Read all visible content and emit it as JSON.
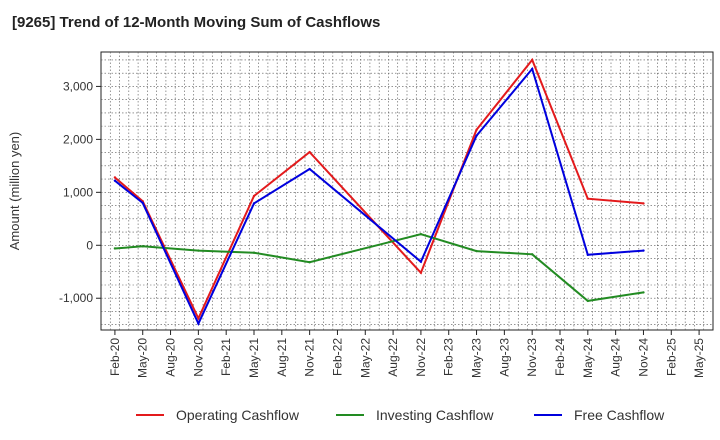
{
  "chart_data": {
    "type": "line",
    "title": "[9265]  Trend of 12-Month Moving Sum of Cashflows",
    "ylabel": "Amount (million yen)",
    "xlabel": "",
    "categories": [
      "Feb-20",
      "May-20",
      "Aug-20",
      "Nov-20",
      "Feb-21",
      "May-21",
      "Aug-21",
      "Nov-21",
      "Feb-22",
      "May-22",
      "Aug-22",
      "Nov-22",
      "Feb-23",
      "May-23",
      "Aug-23",
      "Nov-23",
      "Feb-24",
      "May-24",
      "Aug-24",
      "Nov-24",
      "Feb-25",
      "May-25"
    ],
    "ylim": [
      -1600,
      3650
    ],
    "yticks": [
      -1000,
      0,
      1000,
      2000,
      3000
    ],
    "ytick_labels": [
      "-1,000",
      "0",
      "1,000",
      "2,000",
      "3,000"
    ],
    "grid": true,
    "legend_position": "bottom",
    "series": [
      {
        "name": "Operating Cashflow",
        "color": "#e31a1c",
        "values": [
          1280,
          830,
          null,
          -1380,
          null,
          930,
          null,
          1760,
          null,
          null,
          null,
          -520,
          null,
          2180,
          null,
          3500,
          null,
          880,
          null,
          790,
          null,
          null
        ]
      },
      {
        "name": "Investing Cashflow",
        "color": "#228b22",
        "values": [
          -60,
          -20,
          null,
          -100,
          null,
          -140,
          null,
          -320,
          null,
          null,
          null,
          210,
          null,
          -110,
          null,
          -170,
          null,
          -1050,
          null,
          -890,
          null,
          null
        ]
      },
      {
        "name": "Free Cashflow",
        "color": "#0000dd",
        "values": [
          1220,
          800,
          null,
          -1480,
          null,
          790,
          null,
          1440,
          null,
          null,
          null,
          -310,
          null,
          2070,
          null,
          3330,
          null,
          -180,
          null,
          -100,
          null,
          null
        ]
      }
    ]
  }
}
